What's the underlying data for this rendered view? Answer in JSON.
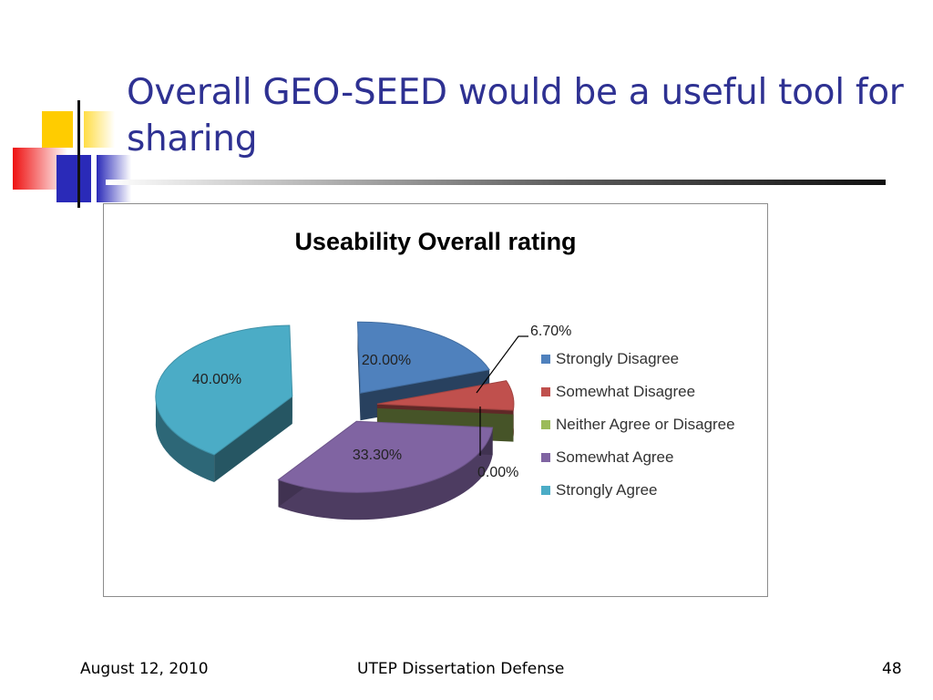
{
  "slide": {
    "title": "Overall GEO-SEED would be a useful tool for sharing",
    "footer_date": "August 12, 2010",
    "footer_center": "UTEP Dissertation Defense",
    "page_number": "48"
  },
  "colors": {
    "title": "#2e3192",
    "logo_yellow": "#ffcc00",
    "logo_red": "#ee1111",
    "logo_blue": "#2a2ab8"
  },
  "chart_data": {
    "type": "pie",
    "title": "Useability Overall rating",
    "legend_position": "right",
    "slices": [
      {
        "label": "Strongly Disagree",
        "value": 20.0,
        "value_label": "20.00%",
        "color": "#4f81bd"
      },
      {
        "label": "Somewhat Disagree",
        "value": 6.7,
        "value_label": "6.70%",
        "color": "#c0504d"
      },
      {
        "label": "Neither Agree or Disagree",
        "value": 0.0,
        "value_label": "0.00%",
        "color": "#9bbb59"
      },
      {
        "label": "Somewhat Agree",
        "value": 33.3,
        "value_label": "33.30%",
        "color": "#8064a2"
      },
      {
        "label": "Strongly Agree",
        "value": 40.0,
        "value_label": "40.00%",
        "color": "#4bacc6"
      }
    ]
  }
}
